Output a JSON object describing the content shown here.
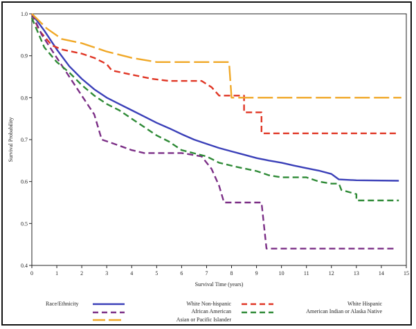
{
  "chart_data": {
    "type": "line",
    "title": "",
    "xlabel": "Survival Time (years)",
    "ylabel": "Survival Probability",
    "xlim": [
      0,
      15
    ],
    "ylim": [
      0.4,
      1.0
    ],
    "x_ticks": [
      "0",
      "1",
      "2",
      "3",
      "4",
      "5",
      "6",
      "7",
      "8",
      "9",
      "10",
      "11",
      "12",
      "13",
      "14",
      "15"
    ],
    "y_ticks": [
      "0.4",
      "0.5",
      "0.6",
      "0.7",
      "0.8",
      "0.9",
      "1.0"
    ],
    "legend": {
      "title": "Race/Ethnicity",
      "placement": "bottom"
    },
    "series": [
      {
        "name": "White Non-hispanic",
        "color": "#3a3fb8",
        "dash": "solid",
        "points": [
          [
            0,
            1.0
          ],
          [
            0.5,
            0.96
          ],
          [
            1,
            0.915
          ],
          [
            1.5,
            0.875
          ],
          [
            2,
            0.845
          ],
          [
            2.5,
            0.82
          ],
          [
            3,
            0.8
          ],
          [
            3.5,
            0.785
          ],
          [
            4,
            0.77
          ],
          [
            4.5,
            0.755
          ],
          [
            5,
            0.74
          ],
          [
            5.5,
            0.727
          ],
          [
            6,
            0.713
          ],
          [
            6.5,
            0.7
          ],
          [
            7,
            0.69
          ],
          [
            7.5,
            0.68
          ],
          [
            8,
            0.672
          ],
          [
            8.5,
            0.664
          ],
          [
            9,
            0.656
          ],
          [
            9.5,
            0.65
          ],
          [
            10,
            0.645
          ],
          [
            10.5,
            0.638
          ],
          [
            11,
            0.632
          ],
          [
            11.5,
            0.626
          ],
          [
            12,
            0.618
          ],
          [
            12.3,
            0.605
          ],
          [
            13,
            0.603
          ],
          [
            14.7,
            0.602
          ]
        ]
      },
      {
        "name": "White Hispanic",
        "color": "#e03524",
        "dash": "dashed",
        "points": [
          [
            0,
            1.0
          ],
          [
            0.3,
            0.96
          ],
          [
            0.8,
            0.925
          ],
          [
            1.2,
            0.915
          ],
          [
            2,
            0.905
          ],
          [
            2.5,
            0.895
          ],
          [
            3,
            0.88
          ],
          [
            3.2,
            0.865
          ],
          [
            4,
            0.855
          ],
          [
            4.8,
            0.845
          ],
          [
            5.5,
            0.84
          ],
          [
            6,
            0.84
          ],
          [
            6.8,
            0.84
          ],
          [
            7.2,
            0.825
          ],
          [
            7.5,
            0.805
          ],
          [
            8.5,
            0.805
          ],
          [
            8.5,
            0.765
          ],
          [
            9.2,
            0.765
          ],
          [
            9.2,
            0.715
          ],
          [
            14.7,
            0.715
          ]
        ]
      },
      {
        "name": "African American",
        "color": "#7b2e86",
        "dash": "dashed",
        "points": [
          [
            0,
            1.0
          ],
          [
            0.4,
            0.95
          ],
          [
            1,
            0.895
          ],
          [
            1.5,
            0.85
          ],
          [
            2,
            0.805
          ],
          [
            2.5,
            0.76
          ],
          [
            2.8,
            0.7
          ],
          [
            3.3,
            0.69
          ],
          [
            4,
            0.675
          ],
          [
            4.5,
            0.668
          ],
          [
            6,
            0.668
          ],
          [
            6.8,
            0.66
          ],
          [
            7.2,
            0.63
          ],
          [
            7.5,
            0.59
          ],
          [
            7.7,
            0.55
          ],
          [
            8.5,
            0.55
          ],
          [
            9.2,
            0.55
          ],
          [
            9.4,
            0.44
          ],
          [
            14.5,
            0.44
          ]
        ]
      },
      {
        "name": "American Indian or Alaska Native",
        "color": "#2e8a36",
        "dash": "dashed",
        "points": [
          [
            0,
            0.99
          ],
          [
            0.5,
            0.92
          ],
          [
            1,
            0.885
          ],
          [
            1.5,
            0.86
          ],
          [
            2,
            0.83
          ],
          [
            2.5,
            0.805
          ],
          [
            3,
            0.785
          ],
          [
            3.5,
            0.77
          ],
          [
            4,
            0.75
          ],
          [
            4.5,
            0.73
          ],
          [
            5,
            0.71
          ],
          [
            5.5,
            0.695
          ],
          [
            6,
            0.675
          ],
          [
            7,
            0.66
          ],
          [
            7.5,
            0.645
          ],
          [
            8.2,
            0.635
          ],
          [
            9,
            0.625
          ],
          [
            9.5,
            0.615
          ],
          [
            10,
            0.61
          ],
          [
            11,
            0.61
          ],
          [
            11.5,
            0.6
          ],
          [
            12,
            0.595
          ],
          [
            12.3,
            0.595
          ],
          [
            12.4,
            0.58
          ],
          [
            13,
            0.57
          ],
          [
            13,
            0.555
          ],
          [
            14.7,
            0.555
          ]
        ]
      },
      {
        "name": "Asian or Pacific Islander",
        "color": "#f0a827",
        "dash": "long-dash",
        "points": [
          [
            0,
            1.0
          ],
          [
            0.6,
            0.965
          ],
          [
            1.2,
            0.94
          ],
          [
            2,
            0.93
          ],
          [
            3,
            0.91
          ],
          [
            4,
            0.895
          ],
          [
            5,
            0.885
          ],
          [
            6,
            0.885
          ],
          [
            7.9,
            0.885
          ],
          [
            8,
            0.8
          ],
          [
            9,
            0.8
          ],
          [
            10,
            0.8
          ],
          [
            12,
            0.8
          ],
          [
            14.8,
            0.8
          ]
        ]
      }
    ],
    "legend_order": [
      "White Non-hispanic",
      "White Hispanic",
      "African American",
      "American Indian or Alaska Native",
      "Asian or Pacific Islander"
    ]
  }
}
